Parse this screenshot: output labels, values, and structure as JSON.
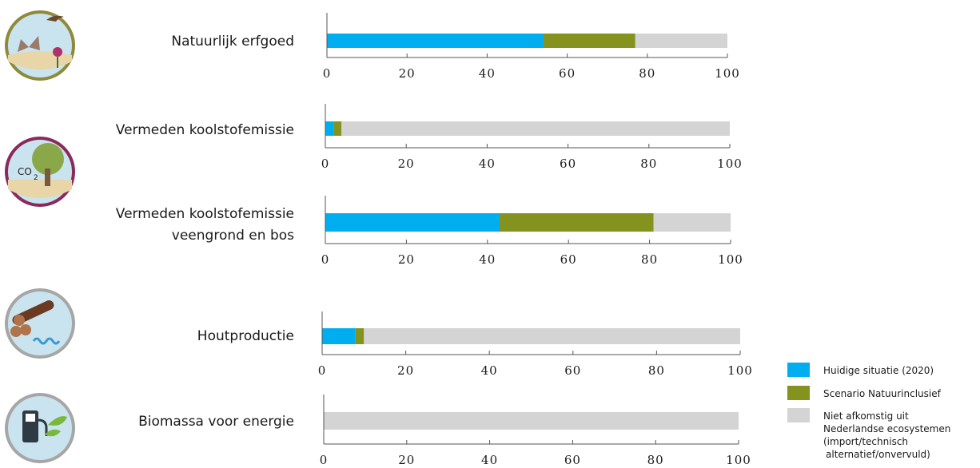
{
  "colors": {
    "current": "#00aeef",
    "scenario": "#84921e",
    "not_from_nl": "#d4d4d4",
    "axis": "#555555"
  },
  "icons": [
    "nature-heritage-icon",
    "carbon-tree-icon",
    "wood-logs-icon",
    "biomass-fuel-pump-icon"
  ],
  "legend": {
    "items": [
      {
        "label": "Huidige situatie (2020)",
        "color": "#00aeef"
      },
      {
        "label": "Scenario Natuurinclusief",
        "color": "#84921e"
      },
      {
        "label": "Niet afkomstig uit",
        "color": "#d4d4d4"
      }
    ],
    "extra_lines": [
      "Nederlandse ecosystemen",
      "(import/technisch",
      "alternatief/onvervuld)"
    ]
  },
  "chart_data": {
    "type": "bar",
    "orientation": "horizontal",
    "stacked": true,
    "xlim": [
      0,
      100
    ],
    "ticks": [
      "0",
      "20",
      "40",
      "60",
      "80",
      "100"
    ],
    "legend_position": "bottom-right",
    "grid": false,
    "categories": [
      "Natuurlijk erfgoed",
      "Vermeden koolstofemissie",
      "Vermeden koolstofemissie veengrond en bos",
      "Houtproductie",
      "Biomassa voor energie"
    ],
    "category_lines": [
      [
        "Natuurlijk erfgoed"
      ],
      [
        "Vermeden koolstofemissie"
      ],
      [
        "Vermeden koolstofemissie",
        "veengrond en bos"
      ],
      [
        "Houtproductie"
      ],
      [
        "Biomassa voor energie"
      ]
    ],
    "series": [
      {
        "name": "Huidige situatie (2020)",
        "values": [
          54,
          2,
          43,
          8,
          0
        ]
      },
      {
        "name": "Scenario Natuurinclusief",
        "values": [
          23,
          2,
          38,
          2,
          0
        ]
      },
      {
        "name": "Niet afkomstig uit Nederlandse ecosystemen (import/technisch alternatief/onvervuld)",
        "values": [
          23,
          96,
          19,
          90,
          100
        ]
      }
    ]
  }
}
